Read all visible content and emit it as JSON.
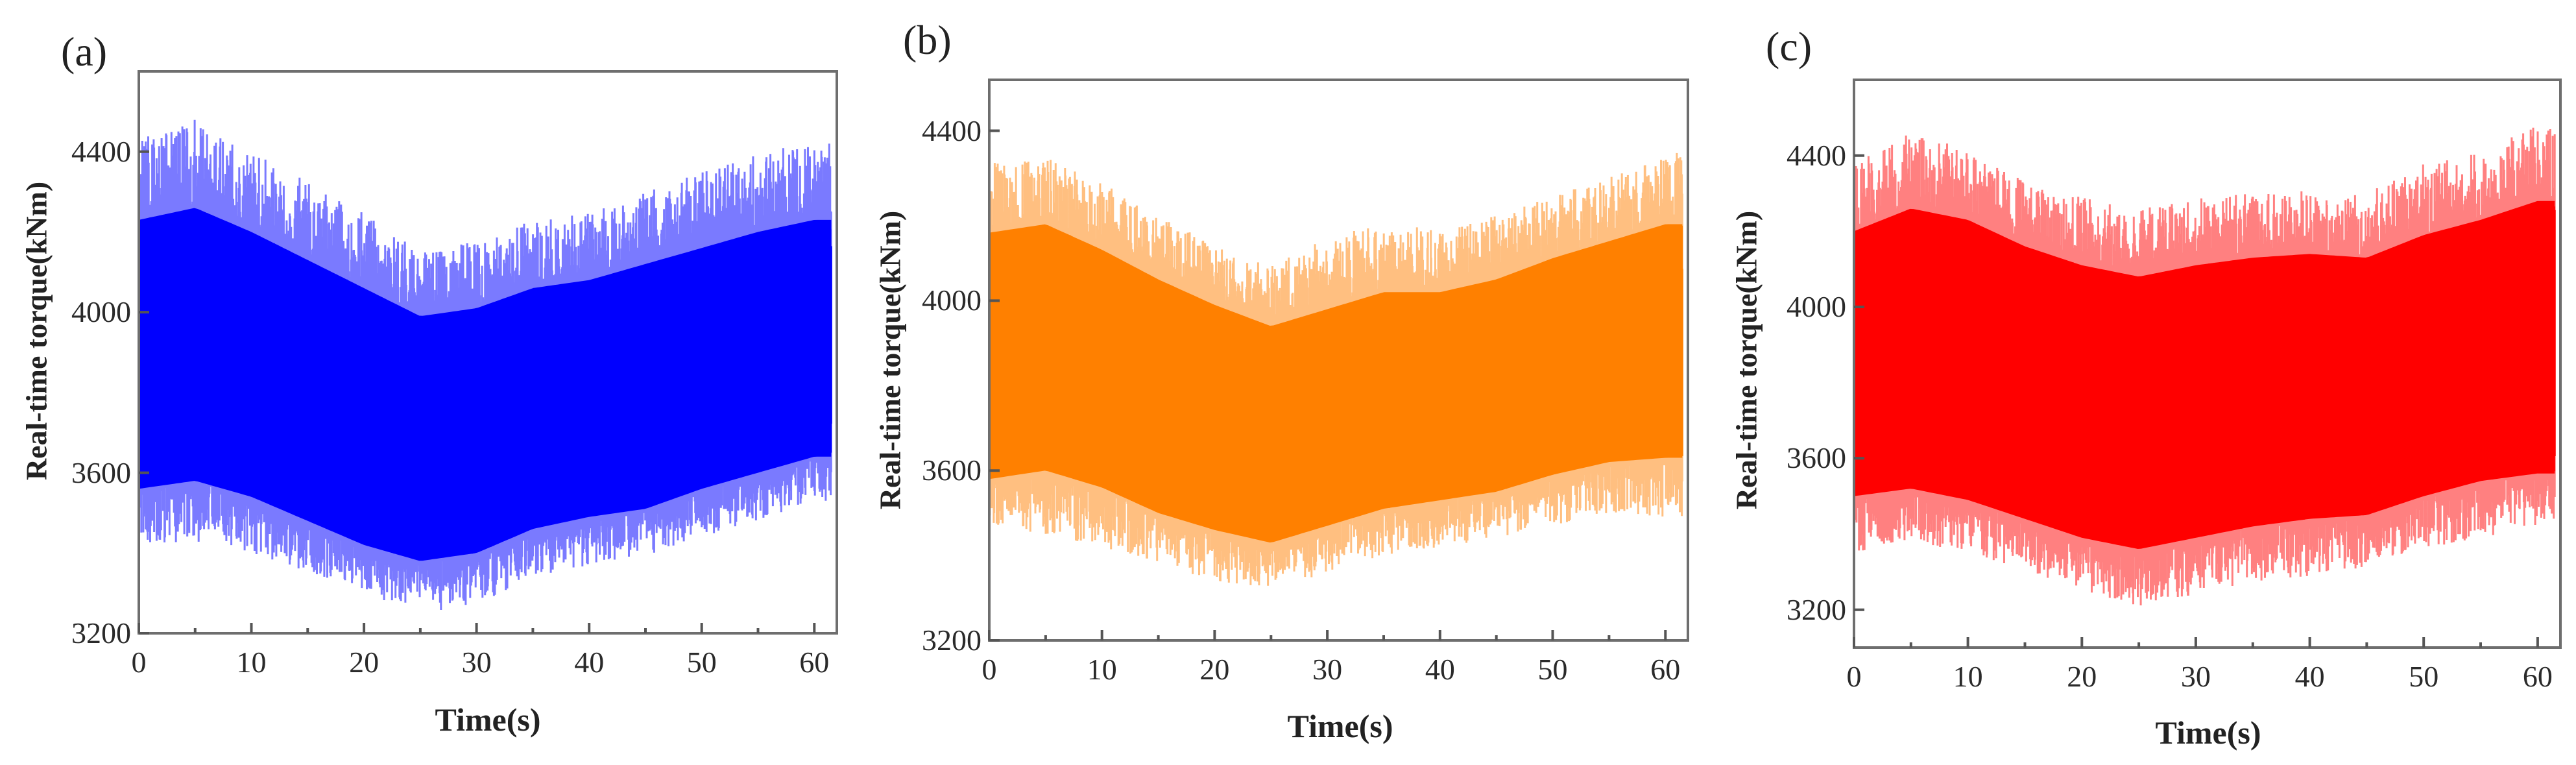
{
  "figure": {
    "panels": [
      {
        "id": "a",
        "label": "(a)",
        "ylabel": "Real-time torque(kNm)",
        "xlabel": "Time(s)",
        "color": "#0000FF",
        "light_color": "#7a7aff",
        "xticks": [
          "0",
          "10",
          "20",
          "30",
          "40",
          "50",
          "60"
        ],
        "yticks": [
          "3200",
          "3600",
          "4000",
          "4400"
        ]
      },
      {
        "id": "b",
        "label": "(b)",
        "ylabel": "Real-time torque(kNm)",
        "xlabel": "Time(s)",
        "color": "#FF8000",
        "light_color": "#ffbf80",
        "xticks": [
          "0",
          "10",
          "20",
          "30",
          "40",
          "50",
          "60"
        ],
        "yticks": [
          "3200",
          "3600",
          "4000",
          "4400"
        ]
      },
      {
        "id": "c",
        "label": "(c)",
        "ylabel": "Real-time torque(kNm)",
        "xlabel": "Time(s)",
        "color": "#FF0000",
        "light_color": "#ff8080",
        "xticks": [
          "0",
          "10",
          "20",
          "30",
          "40",
          "50",
          "60"
        ],
        "yticks": [
          "3200",
          "3600",
          "4000",
          "4400"
        ]
      }
    ]
  },
  "chart_data": [
    {
      "type": "line",
      "title": "(a)",
      "xlabel": "Time(s)",
      "ylabel": "Real-time torque(kNm)",
      "xlim": [
        0,
        62
      ],
      "ylim": [
        3200,
        4600
      ],
      "xticks": [
        0,
        10,
        20,
        30,
        40,
        50,
        60
      ],
      "yticks": [
        3200,
        3600,
        4000,
        4400
      ],
      "grid": false,
      "color": "#0000FF",
      "description": "Dense high-frequency oscillating torque signal; envelope values sampled every 5 s",
      "series": [
        {
          "name": "envelope_max",
          "x": [
            0,
            5,
            10,
            15,
            20,
            25,
            30,
            35,
            40,
            45,
            50,
            55,
            60
          ],
          "values": [
            4430,
            4480,
            4400,
            4330,
            4250,
            4150,
            4180,
            4230,
            4250,
            4300,
            4350,
            4400,
            4420
          ]
        },
        {
          "name": "core_upper",
          "x": [
            0,
            5,
            10,
            15,
            20,
            25,
            30,
            35,
            40,
            45,
            50,
            55,
            60
          ],
          "values": [
            4230,
            4260,
            4200,
            4130,
            4060,
            3990,
            4010,
            4060,
            4080,
            4120,
            4160,
            4200,
            4230
          ]
        },
        {
          "name": "core_lower",
          "x": [
            0,
            5,
            10,
            15,
            20,
            25,
            30,
            35,
            40,
            45,
            50,
            55,
            60
          ],
          "values": [
            3560,
            3580,
            3540,
            3480,
            3420,
            3380,
            3400,
            3460,
            3490,
            3510,
            3560,
            3600,
            3640
          ]
        },
        {
          "name": "envelope_min",
          "x": [
            0,
            5,
            10,
            15,
            20,
            25,
            30,
            35,
            40,
            45,
            50,
            55,
            60
          ],
          "values": [
            3420,
            3430,
            3400,
            3350,
            3300,
            3250,
            3270,
            3340,
            3370,
            3390,
            3440,
            3480,
            3530
          ]
        }
      ]
    },
    {
      "type": "line",
      "title": "(b)",
      "xlabel": "Time(s)",
      "ylabel": "Real-time torque(kNm)",
      "xlim": [
        0,
        62
      ],
      "ylim": [
        3200,
        4520
      ],
      "xticks": [
        0,
        10,
        20,
        30,
        40,
        50,
        60
      ],
      "yticks": [
        3200,
        3600,
        4000,
        4400
      ],
      "grid": false,
      "color": "#FF8000",
      "description": "Dense high-frequency oscillating torque signal; envelope values sampled every 5 s",
      "series": [
        {
          "name": "envelope_max",
          "x": [
            0,
            5,
            10,
            15,
            20,
            25,
            30,
            35,
            40,
            45,
            50,
            55,
            60
          ],
          "values": [
            4330,
            4340,
            4280,
            4200,
            4130,
            4080,
            4150,
            4180,
            4170,
            4200,
            4260,
            4290,
            4350
          ]
        },
        {
          "name": "core_upper",
          "x": [
            0,
            5,
            10,
            15,
            20,
            25,
            30,
            35,
            40,
            45,
            50,
            55,
            60
          ],
          "values": [
            4160,
            4180,
            4120,
            4050,
            3990,
            3940,
            3980,
            4020,
            4020,
            4050,
            4100,
            4140,
            4180
          ]
        },
        {
          "name": "core_lower",
          "x": [
            0,
            5,
            10,
            15,
            20,
            25,
            30,
            35,
            40,
            45,
            50,
            55,
            60
          ],
          "values": [
            3580,
            3600,
            3560,
            3500,
            3460,
            3430,
            3470,
            3510,
            3530,
            3550,
            3590,
            3620,
            3630
          ]
        },
        {
          "name": "envelope_min",
          "x": [
            0,
            5,
            10,
            15,
            20,
            25,
            30,
            35,
            40,
            45,
            50,
            55,
            60
          ],
          "values": [
            3470,
            3450,
            3420,
            3380,
            3340,
            3320,
            3360,
            3400,
            3420,
            3440,
            3470,
            3500,
            3490
          ]
        }
      ]
    },
    {
      "type": "line",
      "title": "(c)",
      "xlabel": "Time(s)",
      "ylabel": "Real-time torque(kNm)",
      "xlim": [
        0,
        62
      ],
      "ylim": [
        3100,
        4600
      ],
      "xticks": [
        0,
        10,
        20,
        30,
        40,
        50,
        60
      ],
      "yticks": [
        3200,
        3600,
        4000,
        4400
      ],
      "grid": false,
      "color": "#FF0000",
      "description": "Dense high-frequency oscillating torque signal; envelope values sampled every 5 s",
      "series": [
        {
          "name": "envelope_max",
          "x": [
            0,
            5,
            10,
            15,
            20,
            25,
            30,
            35,
            40,
            45,
            50,
            55,
            60
          ],
          "values": [
            4380,
            4460,
            4420,
            4330,
            4290,
            4260,
            4290,
            4300,
            4310,
            4300,
            4380,
            4410,
            4480
          ]
        },
        {
          "name": "core_upper",
          "x": [
            0,
            5,
            10,
            15,
            20,
            25,
            30,
            35,
            40,
            45,
            50,
            55,
            60
          ],
          "values": [
            4200,
            4260,
            4230,
            4160,
            4110,
            4080,
            4110,
            4130,
            4140,
            4130,
            4190,
            4230,
            4280
          ]
        },
        {
          "name": "core_lower",
          "x": [
            0,
            5,
            10,
            15,
            20,
            25,
            30,
            35,
            40,
            45,
            50,
            55,
            60
          ],
          "values": [
            3500,
            3520,
            3490,
            3440,
            3390,
            3360,
            3390,
            3420,
            3440,
            3450,
            3500,
            3540,
            3560
          ]
        },
        {
          "name": "envelope_min",
          "x": [
            0,
            5,
            10,
            15,
            20,
            25,
            30,
            35,
            40,
            45,
            50,
            55,
            60
          ],
          "values": [
            3350,
            3380,
            3350,
            3300,
            3250,
            3210,
            3240,
            3270,
            3290,
            3310,
            3360,
            3390,
            3420
          ]
        }
      ]
    }
  ]
}
